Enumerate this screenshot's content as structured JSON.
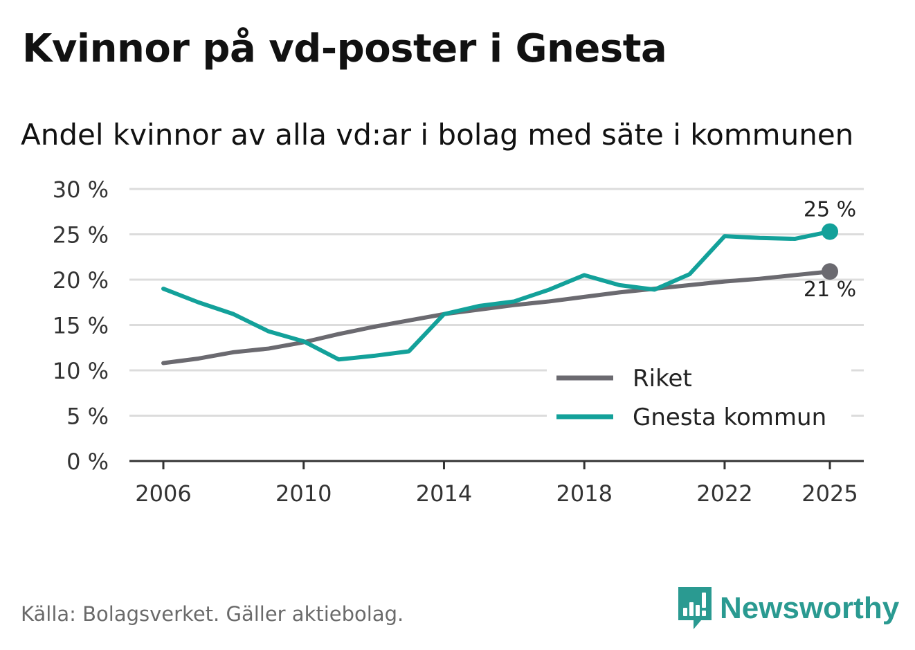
{
  "header": {
    "title": "Kvinnor på vd-poster i Gnesta",
    "subtitle": "Andel kvinnor av alla vd:ar i bolag med säte i kommunen"
  },
  "footer": {
    "source": "Källa: Bolagsverket. Gäller aktiebolag.",
    "brand": "Newsworthy",
    "brand_color": "#2a9a91"
  },
  "chart_data": {
    "type": "line",
    "title": "Kvinnor på vd-poster i Gnesta",
    "subtitle": "Andel kvinnor av alla vd:ar i bolag med säte i kommunen",
    "xlabel": "",
    "ylabel": "",
    "xlim": [
      2006,
      2025
    ],
    "ylim": [
      0,
      30
    ],
    "x_ticks": [
      2006,
      2010,
      2014,
      2018,
      2022,
      2025
    ],
    "y_ticks": [
      0,
      5,
      10,
      15,
      20,
      25,
      30
    ],
    "y_tick_labels": [
      "0 %",
      "5 %",
      "10 %",
      "15 %",
      "20 %",
      "25 %",
      "30 %"
    ],
    "grid": true,
    "legend_position": "bottom-right",
    "x": [
      2006,
      2007,
      2008,
      2009,
      2010,
      2011,
      2012,
      2013,
      2014,
      2015,
      2016,
      2017,
      2018,
      2019,
      2020,
      2021,
      2022,
      2023,
      2024,
      2025
    ],
    "series": [
      {
        "name": "Riket",
        "color": "#6b6a70",
        "values": [
          10.8,
          11.3,
          12.0,
          12.4,
          13.1,
          14.0,
          14.8,
          15.5,
          16.2,
          16.7,
          17.2,
          17.6,
          18.1,
          18.6,
          19.0,
          19.4,
          19.8,
          20.1,
          20.5,
          20.9
        ],
        "end_label": "21 %"
      },
      {
        "name": "Gnesta kommun",
        "color": "#13a19a",
        "values": [
          19.0,
          17.5,
          16.2,
          14.3,
          13.2,
          11.2,
          11.6,
          12.1,
          16.2,
          17.1,
          17.6,
          18.9,
          20.5,
          19.4,
          18.9,
          20.6,
          24.8,
          24.6,
          24.5,
          25.3
        ],
        "end_label": "25 %"
      }
    ]
  }
}
